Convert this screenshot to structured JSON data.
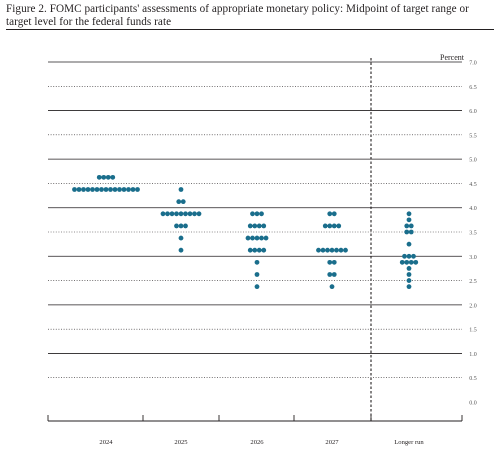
{
  "figure": {
    "title": "Figure 2. FOMC participants' assessments of appropriate monetary policy: Midpoint of target range or target level for the federal funds rate"
  },
  "colors": {
    "dot": "#1a6e8c",
    "grid": "#231f20"
  },
  "chart_data": {
    "type": "scatter",
    "title": "",
    "xlabel": "",
    "ylabel": "Percent",
    "categories": [
      "2024",
      "2025",
      "2026",
      "2027",
      "Longer run"
    ],
    "ylim": [
      0,
      7
    ],
    "y_ticks": [
      "0.0",
      "0.5",
      "1.0",
      "1.5",
      "2.0",
      "2.5",
      "3.0",
      "3.5",
      "4.0",
      "4.5",
      "5.0",
      "5.5",
      "6.0",
      "6.5",
      "7.0"
    ],
    "solid_gridlines": [
      1,
      2,
      3,
      4,
      5,
      6,
      7
    ],
    "dotted_gridlines": [
      0.5,
      1.5,
      2.5,
      3.5,
      4.5,
      5.5,
      6.5
    ],
    "separator_before": "Longer run",
    "dots": [
      {
        "x": "2024",
        "points": [
          {
            "y": 4.625,
            "count": 4
          },
          {
            "y": 4.375,
            "count": 15
          }
        ]
      },
      {
        "x": "2025",
        "points": [
          {
            "y": 4.375,
            "count": 1
          },
          {
            "y": 4.125,
            "count": 2
          },
          {
            "y": 3.875,
            "count": 9
          },
          {
            "y": 3.625,
            "count": 3
          },
          {
            "y": 3.375,
            "count": 1
          },
          {
            "y": 3.125,
            "count": 1
          }
        ]
      },
      {
        "x": "2026",
        "points": [
          {
            "y": 3.875,
            "count": 3
          },
          {
            "y": 3.625,
            "count": 4
          },
          {
            "y": 3.375,
            "count": 5
          },
          {
            "y": 3.125,
            "count": 4
          },
          {
            "y": 2.875,
            "count": 1
          },
          {
            "y": 2.625,
            "count": 1
          },
          {
            "y": 2.375,
            "count": 1
          }
        ]
      },
      {
        "x": "2027",
        "points": [
          {
            "y": 3.875,
            "count": 2
          },
          {
            "y": 3.625,
            "count": 4
          },
          {
            "y": 3.125,
            "count": 7
          },
          {
            "y": 2.875,
            "count": 2
          },
          {
            "y": 2.625,
            "count": 2
          },
          {
            "y": 2.375,
            "count": 1
          }
        ]
      },
      {
        "x": "Longer run",
        "points": [
          {
            "y": 3.875,
            "count": 1
          },
          {
            "y": 3.75,
            "count": 1
          },
          {
            "y": 3.625,
            "count": 2
          },
          {
            "y": 3.5,
            "count": 2
          },
          {
            "y": 3.25,
            "count": 1
          },
          {
            "y": 3.0,
            "count": 3
          },
          {
            "y": 2.875,
            "count": 4
          },
          {
            "y": 2.75,
            "count": 1
          },
          {
            "y": 2.625,
            "count": 1
          },
          {
            "y": 2.5,
            "count": 1
          },
          {
            "y": 2.375,
            "count": 1
          }
        ]
      }
    ]
  }
}
